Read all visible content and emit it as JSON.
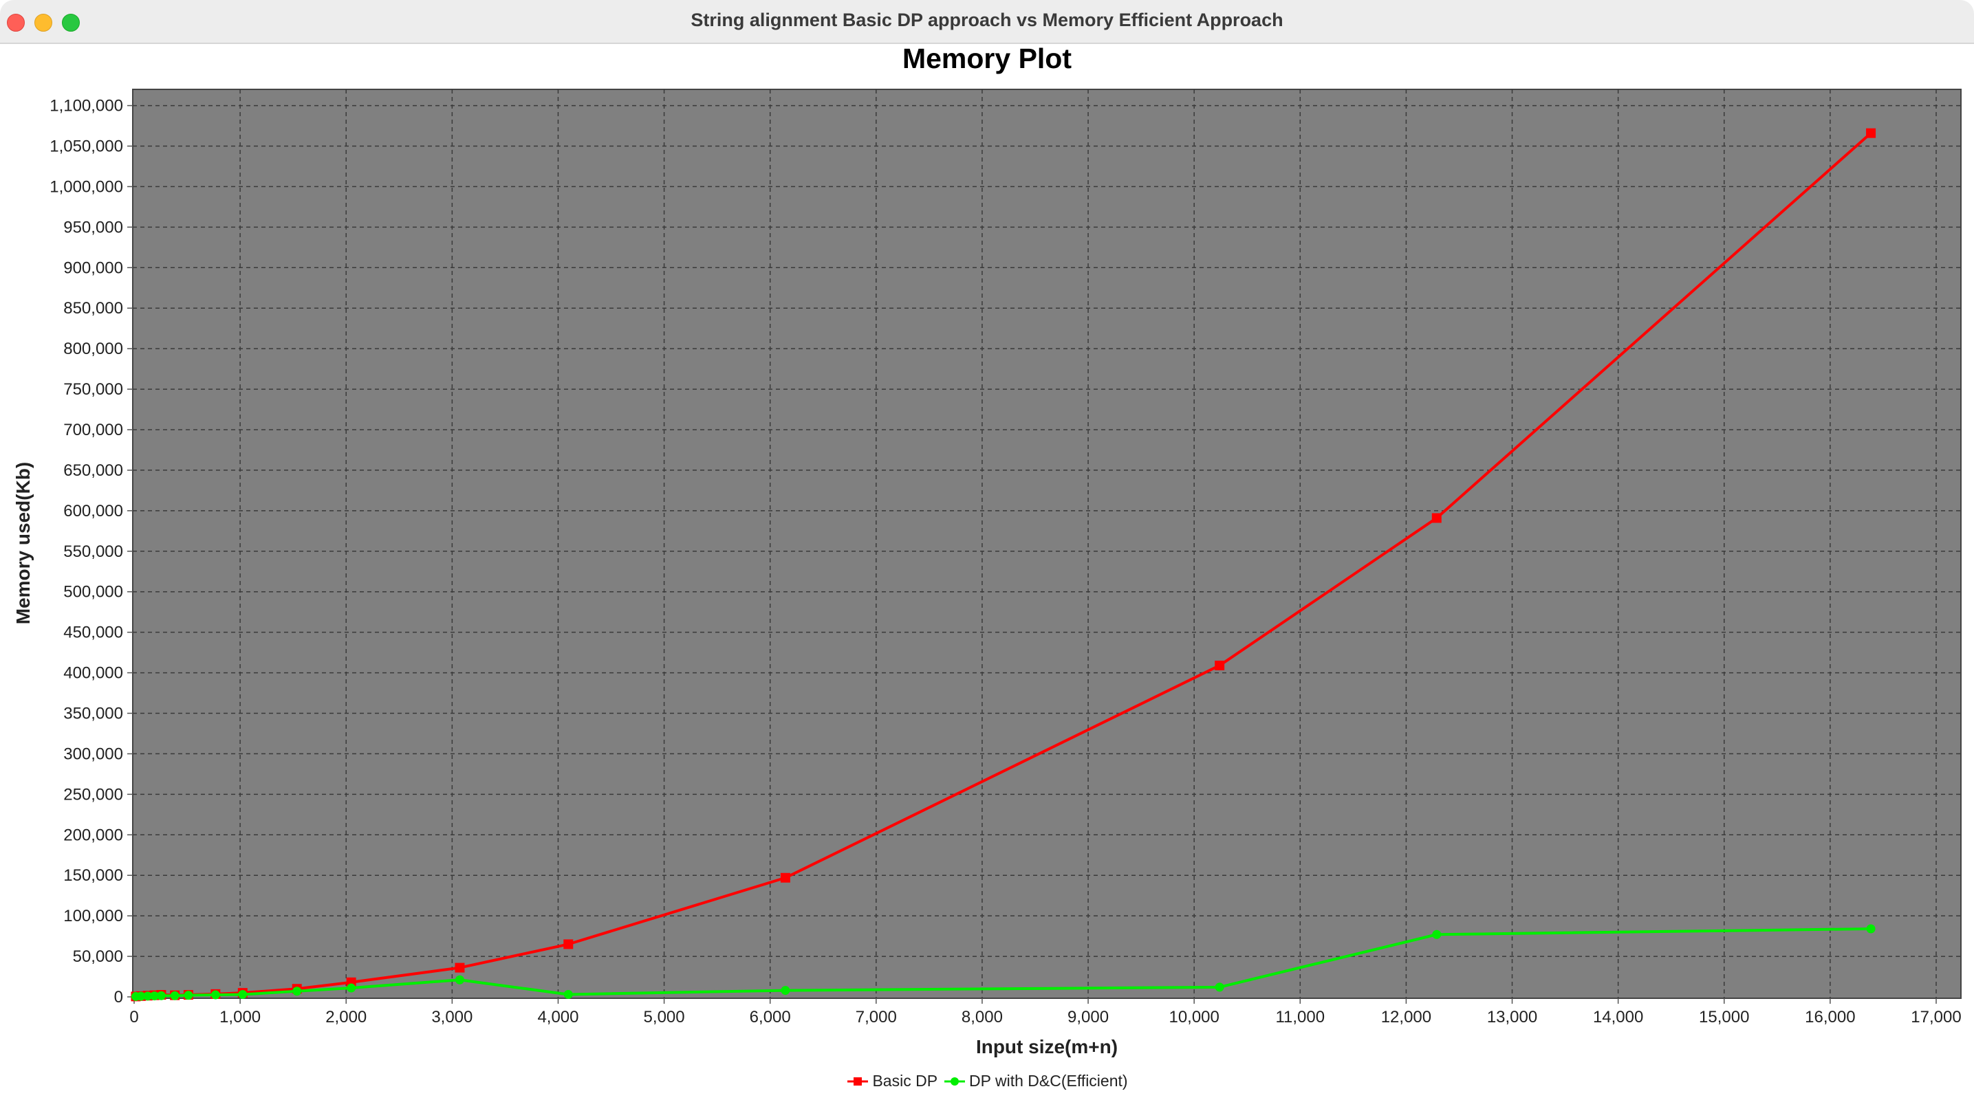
{
  "window": {
    "title": "String alignment Basic DP approach vs Memory Efficient Approach"
  },
  "chart_data": {
    "type": "line",
    "title": "Memory Plot",
    "xlabel": "Input size(m+n)",
    "ylabel": "Memory used(Kb)",
    "xlim": [
      0,
      17000
    ],
    "ylim": [
      0,
      1120000
    ],
    "x_ticks": [
      0,
      1000,
      2000,
      3000,
      4000,
      5000,
      6000,
      7000,
      8000,
      9000,
      10000,
      11000,
      12000,
      13000,
      14000,
      15000,
      16000,
      17000
    ],
    "x_tick_labels": [
      "0",
      "1,000",
      "2,000",
      "3,000",
      "4,000",
      "5,000",
      "6,000",
      "7,000",
      "8,000",
      "9,000",
      "10,000",
      "11,000",
      "12,000",
      "13,000",
      "14,000",
      "15,000",
      "16,000",
      "17,000"
    ],
    "y_ticks": [
      0,
      50000,
      100000,
      150000,
      200000,
      250000,
      300000,
      350000,
      400000,
      450000,
      500000,
      550000,
      600000,
      650000,
      700000,
      750000,
      800000,
      850000,
      900000,
      950000,
      1000000,
      1050000,
      1100000
    ],
    "y_tick_labels": [
      "0",
      "50,000",
      "100,000",
      "150,000",
      "200,000",
      "250,000",
      "300,000",
      "350,000",
      "400,000",
      "450,000",
      "500,000",
      "550,000",
      "600,000",
      "650,000",
      "700,000",
      "750,000",
      "800,000",
      "850,000",
      "900,000",
      "950,000",
      "1,000,000",
      "1,050,000",
      "1,100,000"
    ],
    "grid": true,
    "legend_position": "bottom",
    "plot_background": "#808080",
    "series": [
      {
        "name": "Basic DP",
        "color": "#ff0000",
        "marker": "square",
        "x": [
          16,
          64,
          128,
          192,
          256,
          384,
          512,
          768,
          1024,
          1536,
          2048,
          3072,
          4096,
          6144,
          10240,
          12288,
          16384
        ],
        "y": [
          500,
          1000,
          1500,
          2000,
          2500,
          2000,
          2500,
          3500,
          5000,
          10000,
          18000,
          36000,
          65000,
          147000,
          409000,
          591000,
          1066000
        ]
      },
      {
        "name": "DP with D&C(Efficient)",
        "color": "#00ee00",
        "marker": "circle",
        "x": [
          16,
          64,
          128,
          192,
          256,
          384,
          512,
          768,
          1024,
          1536,
          2048,
          3072,
          4096,
          6144,
          10240,
          12288,
          16384
        ],
        "y": [
          500,
          800,
          1000,
          1200,
          1500,
          1500,
          2000,
          2500,
          3000,
          7000,
          11000,
          21000,
          3000,
          8000,
          12000,
          77000,
          84000
        ]
      }
    ]
  }
}
